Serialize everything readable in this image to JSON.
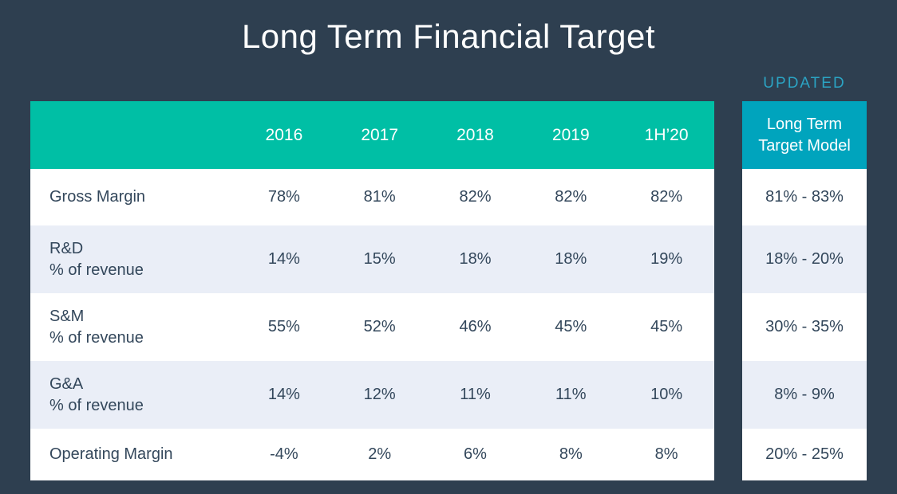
{
  "title": "Long Term Financial Target",
  "updated_label": "UPDATED",
  "colors": {
    "background": "#2e3f50",
    "header_teal": "#00bfa5",
    "target_header_cyan": "#00a4bd",
    "updated_text": "#2ba4c4",
    "row_alt": "#eaeef7",
    "cell_text": "#33475b"
  },
  "table": {
    "columns": [
      "2016",
      "2017",
      "2018",
      "2019",
      "1H’20"
    ],
    "rows": [
      {
        "label": "Gross Margin",
        "values": [
          "78%",
          "81%",
          "82%",
          "82%",
          "82%"
        ],
        "target": "81% - 83%"
      },
      {
        "label": "R&D",
        "sublabel": "% of revenue",
        "values": [
          "14%",
          "15%",
          "18%",
          "18%",
          "19%"
        ],
        "target": "18% - 20%"
      },
      {
        "label": "S&M",
        "sublabel": "% of revenue",
        "values": [
          "55%",
          "52%",
          "46%",
          "45%",
          "45%"
        ],
        "target": "30% - 35%"
      },
      {
        "label": "G&A",
        "sublabel": "% of revenue",
        "values": [
          "14%",
          "12%",
          "11%",
          "11%",
          "10%"
        ],
        "target": "8% - 9%"
      },
      {
        "label": "Operating Margin",
        "values": [
          "-4%",
          "2%",
          "6%",
          "8%",
          "8%"
        ],
        "target": "20% - 25%"
      }
    ]
  },
  "target_column": {
    "header": "Long Term Target Model"
  },
  "chart_data": {
    "type": "table",
    "title": "Long Term Financial Target",
    "columns": [
      "Metric",
      "2016",
      "2017",
      "2018",
      "2019",
      "1H'20",
      "Long Term Target Model (UPDATED)"
    ],
    "rows": [
      [
        "Gross Margin",
        "78%",
        "81%",
        "82%",
        "82%",
        "82%",
        "81% - 83%"
      ],
      [
        "R&D % of revenue",
        "14%",
        "15%",
        "18%",
        "18%",
        "19%",
        "18% - 20%"
      ],
      [
        "S&M % of revenue",
        "55%",
        "52%",
        "46%",
        "45%",
        "45%",
        "30% - 35%"
      ],
      [
        "G&A % of revenue",
        "14%",
        "12%",
        "11%",
        "11%",
        "10%",
        "8% - 9%"
      ],
      [
        "Operating Margin",
        "-4%",
        "2%",
        "6%",
        "8%",
        "8%",
        "20% - 25%"
      ]
    ]
  }
}
